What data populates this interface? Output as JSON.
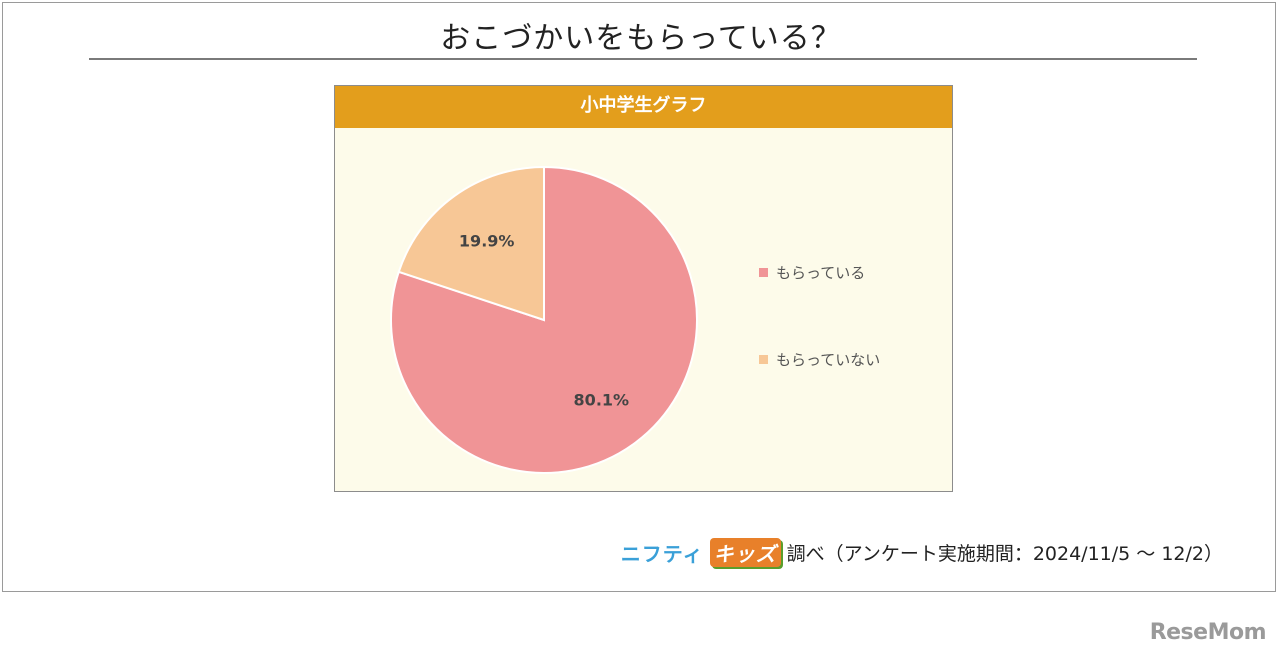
{
  "title": "おこづかいをもらっている？",
  "panel_title": "小中学生グラフ",
  "chart_data": {
    "type": "pie",
    "categories": [
      "もらっている",
      "もらっていない"
    ],
    "values": [
      80.1,
      19.9
    ],
    "data_labels": [
      "80.1%",
      "19.9%"
    ],
    "colors": [
      "#f09496",
      "#f7c796"
    ],
    "legend_position": "right"
  },
  "source": {
    "logo_part1": "ニフティ",
    "logo_part2": "キッズ",
    "text": "調べ（アンケート実施期間：2024/11/5 ～ 12/2）"
  },
  "brand": "ReseMom"
}
